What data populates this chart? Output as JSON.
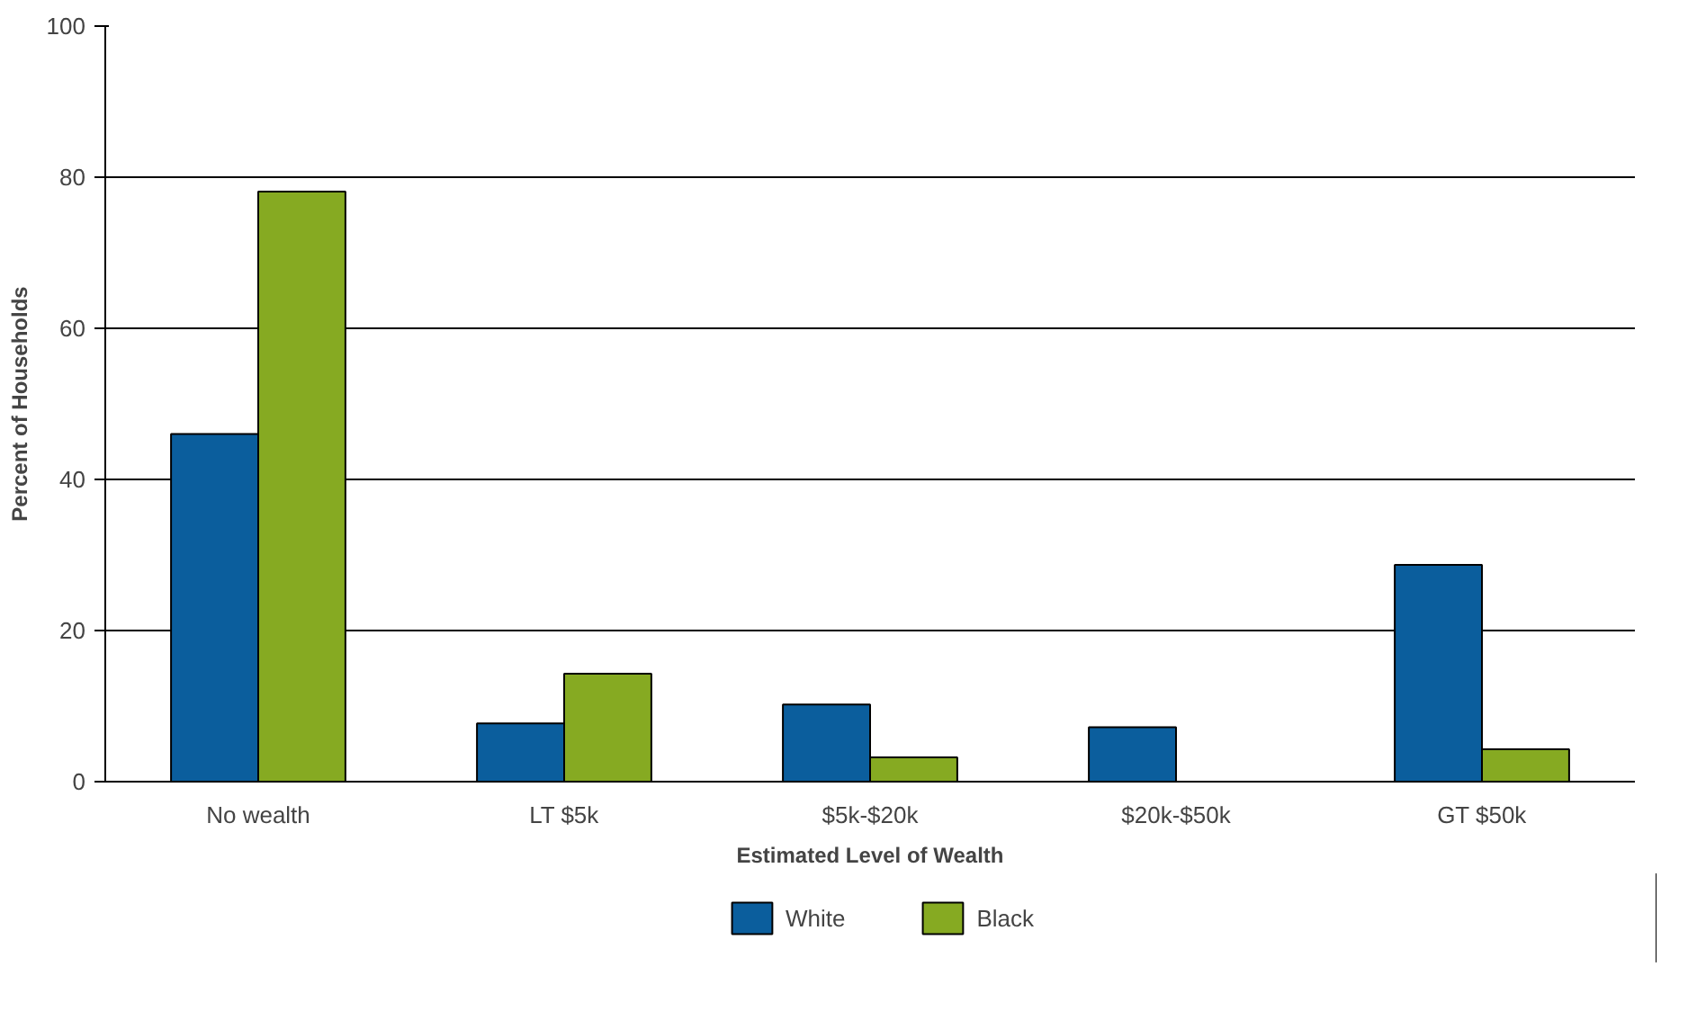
{
  "chart_data": {
    "type": "bar",
    "xlabel": "Estimated Level of Wealth",
    "ylabel": "Percent of Households",
    "categories": [
      "No wealth",
      "LT $5k",
      "$5k-$20k",
      "$20k-$50k",
      "GT $50k"
    ],
    "series": [
      {
        "name": "White",
        "color": "#0b5e9d",
        "values": [
          46,
          7.7,
          10.2,
          7.2,
          28.7
        ]
      },
      {
        "name": "Black",
        "color": "#86aa22",
        "values": [
          78.1,
          14.3,
          3.2,
          null,
          4.3
        ]
      }
    ],
    "ylim": [
      0,
      100
    ],
    "yticks": [
      0,
      20,
      40,
      60,
      80,
      100
    ],
    "grid": "y",
    "legend": "bottom"
  }
}
